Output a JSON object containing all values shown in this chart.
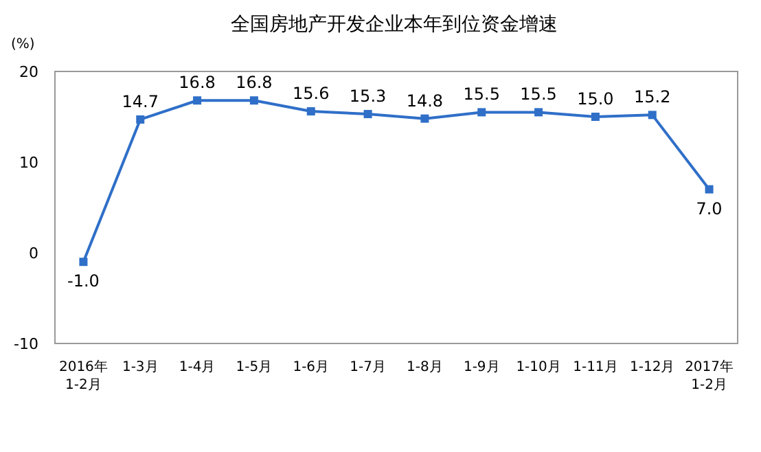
{
  "chart_data": {
    "type": "line",
    "title": "全国房地产开发企业本年到位资金增速",
    "ylabel": "(%)",
    "categories": [
      "2016年\n1-2月",
      "1-3月",
      "1-4月",
      "1-5月",
      "1-6月",
      "1-7月",
      "1-8月",
      "1-9月",
      "1-10月",
      "1-11月",
      "1-12月",
      "2017年\n1-2月"
    ],
    "series": [
      {
        "color": "#2f6fc8",
        "values": [
          -1.0,
          14.7,
          16.8,
          16.8,
          15.6,
          15.3,
          14.8,
          15.5,
          15.5,
          15.0,
          15.2,
          7.0
        ],
        "value_labels": [
          "-1.0",
          "14.7",
          "16.8",
          "16.8",
          "15.6",
          "15.3",
          "14.8",
          "15.5",
          "15.5",
          "15.0",
          "15.2",
          "7.0"
        ]
      }
    ],
    "ylim": [
      -10,
      20
    ],
    "yticks": [
      -10,
      0,
      10,
      20
    ],
    "marker": "square",
    "line_style": "solid",
    "grid": false
  }
}
